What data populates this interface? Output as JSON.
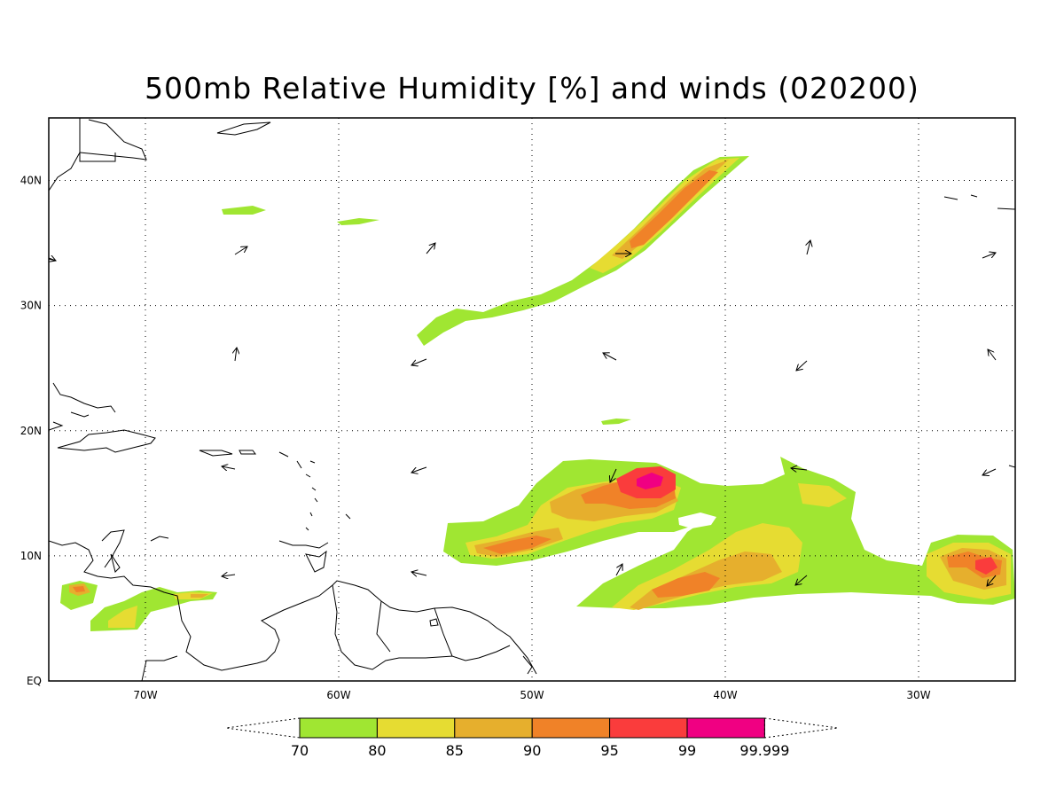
{
  "title": "500mb Relative Humidity [%] and winds (020200)",
  "map": {
    "lon_range": [
      -75,
      -25
    ],
    "lat_range": [
      0,
      45
    ],
    "grid": true,
    "lon_ticks": [
      {
        "value": -70,
        "label": "70W"
      },
      {
        "value": -60,
        "label": "60W"
      },
      {
        "value": -50,
        "label": "50W"
      },
      {
        "value": -40,
        "label": "40W"
      },
      {
        "value": -30,
        "label": "30W"
      }
    ],
    "lat_ticks": [
      {
        "value": 0,
        "label": "EQ"
      },
      {
        "value": 10,
        "label": "10N"
      },
      {
        "value": 20,
        "label": "20N"
      },
      {
        "value": 30,
        "label": "30N"
      },
      {
        "value": 40,
        "label": "40N"
      }
    ]
  },
  "colorbar": {
    "colors": [
      "#a0e632",
      "#e6dc32",
      "#e6af2d",
      "#f08228",
      "#fa3c3c",
      "#f00082"
    ],
    "labels": [
      "70",
      "80",
      "85",
      "90",
      "95",
      "99",
      "99.999"
    ]
  }
}
